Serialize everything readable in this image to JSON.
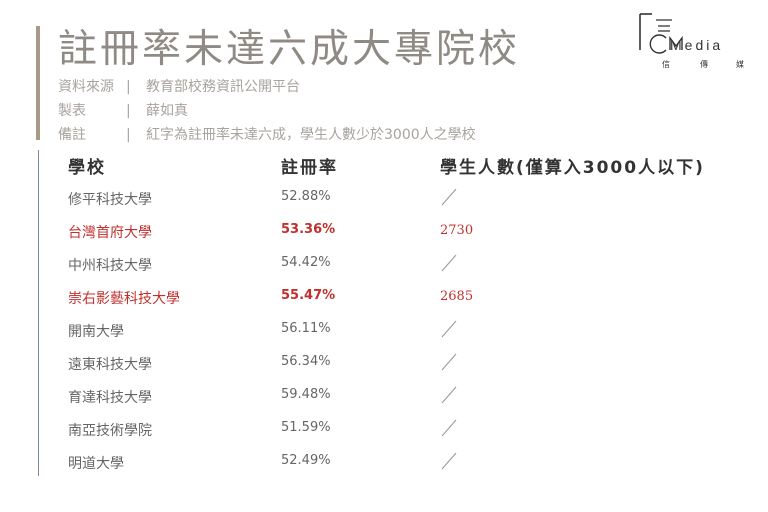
{
  "title": "註冊率未達六成大專院校",
  "meta": [
    {
      "key": "資料來源",
      "sep": "|",
      "value": "教育部校務資訊公開平台"
    },
    {
      "key": "製表",
      "sep": "|",
      "value": "薛如真"
    },
    {
      "key": "備註",
      "sep": "|",
      "value": "紅字為註冊率未達六成，學生人數少於3000人之學校"
    }
  ],
  "logo": {
    "text": "Media",
    "chars": [
      "信",
      "傳",
      "媒"
    ]
  },
  "table": {
    "headers": [
      "學校",
      "註冊率",
      "學生人數(僅算入3000人以下)"
    ],
    "rows": [
      {
        "school": "修平科技大學",
        "rate": "52.88%",
        "count": "",
        "highlight": false
      },
      {
        "school": "台灣首府大學",
        "rate": "53.36%",
        "count": "2730",
        "highlight": true
      },
      {
        "school": "中州科技大學",
        "rate": "54.42%",
        "count": "",
        "highlight": false
      },
      {
        "school": "崇右影藝科技大學",
        "rate": "55.47%",
        "count": "2685",
        "highlight": true
      },
      {
        "school": "開南大學",
        "rate": "56.11%",
        "count": "",
        "highlight": false
      },
      {
        "school": "遠東科技大學",
        "rate": "56.34%",
        "count": "",
        "highlight": false
      },
      {
        "school": "育達科技大學",
        "rate": "59.48%",
        "count": "",
        "highlight": false
      },
      {
        "school": "南亞技術學院",
        "rate": "51.59%",
        "count": "",
        "highlight": false
      },
      {
        "school": "明道大學",
        "rate": "52.49%",
        "count": "",
        "highlight": false
      }
    ]
  },
  "colors": {
    "highlight": "#c0302e",
    "accent_bar": "#a89a86",
    "table_line": "#7f8aa4"
  }
}
